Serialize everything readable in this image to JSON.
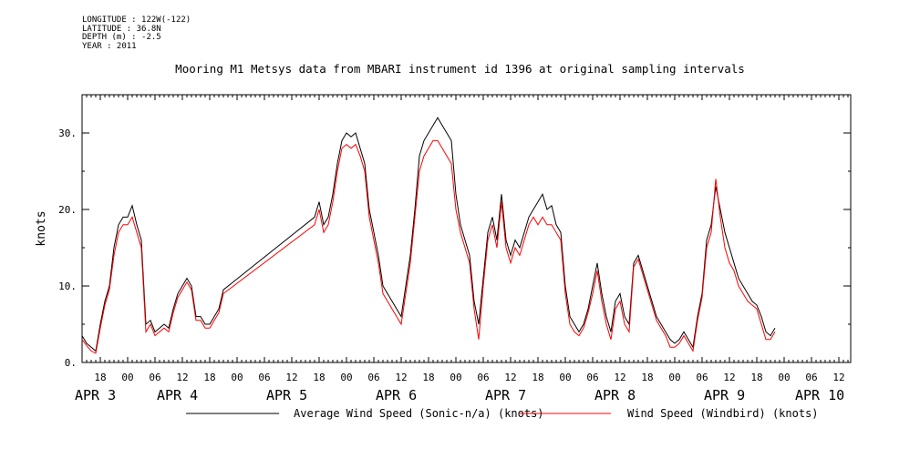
{
  "header": {
    "longitude": "LONGITUDE : 122W(-122)",
    "latitude": "LATITUDE : 36.8N",
    "depth": "DEPTH (m) : -2.5",
    "year": "YEAR : 2011"
  },
  "chart_data": {
    "type": "line",
    "title": "Mooring M1 Metsys data from MBARI instrument id 1396 at original sampling intervals",
    "ylabel": "knots",
    "xlabel": "",
    "x_unit": "hours since APR 2 14:00 (2011)",
    "xlim": [
      0,
      170
    ],
    "ylim": [
      0,
      35
    ],
    "yticks": [
      0,
      10,
      20,
      30
    ],
    "ytick_labels": [
      "0.",
      "10.",
      "20.",
      "30."
    ],
    "x_hour_ticks": [
      {
        "x": 4,
        "label": "18"
      },
      {
        "x": 10,
        "label": "00"
      },
      {
        "x": 16,
        "label": "06"
      },
      {
        "x": 22,
        "label": "12"
      },
      {
        "x": 28,
        "label": "18"
      },
      {
        "x": 34,
        "label": "00"
      },
      {
        "x": 40,
        "label": "06"
      },
      {
        "x": 46,
        "label": "12"
      },
      {
        "x": 52,
        "label": "18"
      },
      {
        "x": 58,
        "label": "00"
      },
      {
        "x": 64,
        "label": "06"
      },
      {
        "x": 70,
        "label": "12"
      },
      {
        "x": 76,
        "label": "18"
      },
      {
        "x": 82,
        "label": "00"
      },
      {
        "x": 88,
        "label": "06"
      },
      {
        "x": 94,
        "label": "12"
      },
      {
        "x": 100,
        "label": "18"
      },
      {
        "x": 106,
        "label": "00"
      },
      {
        "x": 112,
        "label": "06"
      },
      {
        "x": 118,
        "label": "12"
      },
      {
        "x": 124,
        "label": "18"
      },
      {
        "x": 130,
        "label": "00"
      },
      {
        "x": 136,
        "label": "06"
      },
      {
        "x": 142,
        "label": "12"
      },
      {
        "x": 148,
        "label": "18"
      },
      {
        "x": 154,
        "label": "00"
      },
      {
        "x": 160,
        "label": "06"
      },
      {
        "x": 166,
        "label": "12"
      }
    ],
    "day_labels": [
      {
        "x": 0,
        "label": "APR  3"
      },
      {
        "x": 18,
        "label": "APR  4"
      },
      {
        "x": 42,
        "label": "APR  5"
      },
      {
        "x": 66,
        "label": "APR  6"
      },
      {
        "x": 90,
        "label": "APR  7"
      },
      {
        "x": 114,
        "label": "APR  8"
      },
      {
        "x": 138,
        "label": "APR  9"
      },
      {
        "x": 158,
        "label": "APR 10"
      }
    ],
    "series": [
      {
        "name": "Average Wind Speed (Sonic-n/a) (knots)",
        "color": "#000000",
        "points": [
          [
            0,
            3.5
          ],
          [
            1,
            2.5
          ],
          [
            2,
            2.0
          ],
          [
            3,
            1.5
          ],
          [
            4,
            5
          ],
          [
            5,
            8
          ],
          [
            6,
            10
          ],
          [
            7,
            15
          ],
          [
            8,
            18
          ],
          [
            9,
            19
          ],
          [
            10,
            19
          ],
          [
            11,
            20.5
          ],
          [
            12,
            18
          ],
          [
            13,
            16
          ],
          [
            14,
            5
          ],
          [
            15,
            5.5
          ],
          [
            16,
            4
          ],
          [
            17,
            4.5
          ],
          [
            18,
            5
          ],
          [
            19,
            4.5
          ],
          [
            20,
            7
          ],
          [
            21,
            9
          ],
          [
            22,
            10
          ],
          [
            23,
            11
          ],
          [
            24,
            10
          ],
          [
            25,
            6
          ],
          [
            26,
            6
          ],
          [
            27,
            5
          ],
          [
            28,
            5
          ],
          [
            29,
            6
          ],
          [
            30,
            7
          ],
          [
            31,
            9.5
          ],
          [
            51,
            19
          ],
          [
            52,
            21
          ],
          [
            53,
            18
          ],
          [
            54,
            19
          ],
          [
            55,
            22
          ],
          [
            56,
            26
          ],
          [
            57,
            29
          ],
          [
            58,
            30
          ],
          [
            59,
            29.5
          ],
          [
            60,
            30
          ],
          [
            61,
            28
          ],
          [
            62,
            26
          ],
          [
            63,
            20
          ],
          [
            64,
            17
          ],
          [
            65,
            14
          ],
          [
            66,
            10
          ],
          [
            67,
            9
          ],
          [
            68,
            8
          ],
          [
            69,
            7
          ],
          [
            70,
            6
          ],
          [
            71,
            10
          ],
          [
            72,
            14
          ],
          [
            73,
            20
          ],
          [
            74,
            27
          ],
          [
            75,
            29
          ],
          [
            76,
            30
          ],
          [
            77,
            31
          ],
          [
            78,
            32
          ],
          [
            79,
            31
          ],
          [
            80,
            30
          ],
          [
            81,
            29
          ],
          [
            82,
            22
          ],
          [
            83,
            18
          ],
          [
            84,
            16
          ],
          [
            85,
            14
          ],
          [
            86,
            8
          ],
          [
            87,
            5
          ],
          [
            88,
            11
          ],
          [
            89,
            17
          ],
          [
            90,
            19
          ],
          [
            91,
            16
          ],
          [
            92,
            22
          ],
          [
            93,
            16
          ],
          [
            94,
            14
          ],
          [
            95,
            16
          ],
          [
            96,
            15
          ],
          [
            97,
            17
          ],
          [
            98,
            19
          ],
          [
            99,
            20
          ],
          [
            100,
            21
          ],
          [
            101,
            22
          ],
          [
            102,
            20
          ],
          [
            103,
            20.5
          ],
          [
            104,
            18
          ],
          [
            105,
            17
          ],
          [
            106,
            10
          ],
          [
            107,
            6
          ],
          [
            108,
            5
          ],
          [
            109,
            4
          ],
          [
            110,
            5
          ],
          [
            111,
            7
          ],
          [
            112,
            10
          ],
          [
            113,
            13
          ],
          [
            114,
            9
          ],
          [
            115,
            6
          ],
          [
            116,
            4
          ],
          [
            117,
            8
          ],
          [
            118,
            9
          ],
          [
            119,
            6
          ],
          [
            120,
            5
          ],
          [
            121,
            13
          ],
          [
            122,
            14
          ],
          [
            123,
            12
          ],
          [
            124,
            10
          ],
          [
            125,
            8
          ],
          [
            126,
            6
          ],
          [
            127,
            5
          ],
          [
            128,
            4
          ],
          [
            129,
            3
          ],
          [
            130,
            2.5
          ],
          [
            131,
            3
          ],
          [
            132,
            4
          ],
          [
            133,
            3
          ],
          [
            134,
            2
          ],
          [
            135,
            6
          ],
          [
            136,
            9
          ],
          [
            137,
            16
          ],
          [
            138,
            18
          ],
          [
            139,
            23
          ],
          [
            140,
            20
          ],
          [
            141,
            17
          ],
          [
            142,
            15
          ],
          [
            143,
            13
          ],
          [
            144,
            11
          ],
          [
            145,
            10
          ],
          [
            146,
            9
          ],
          [
            147,
            8
          ],
          [
            148,
            7.5
          ],
          [
            149,
            6
          ],
          [
            150,
            4
          ],
          [
            151,
            3.5
          ],
          [
            152,
            4.5
          ]
        ]
      },
      {
        "name": "Wind Speed (Windbird) (knots)",
        "color": "#ff0000",
        "points": [
          [
            0,
            3
          ],
          [
            1,
            2.2
          ],
          [
            2,
            1.5
          ],
          [
            3,
            1.2
          ],
          [
            4,
            4.5
          ],
          [
            5,
            7.5
          ],
          [
            6,
            9.5
          ],
          [
            7,
            14
          ],
          [
            8,
            17
          ],
          [
            9,
            18
          ],
          [
            10,
            18
          ],
          [
            11,
            19
          ],
          [
            12,
            17
          ],
          [
            13,
            15
          ],
          [
            14,
            4
          ],
          [
            15,
            5
          ],
          [
            16,
            3.5
          ],
          [
            17,
            4
          ],
          [
            18,
            4.5
          ],
          [
            19,
            4
          ],
          [
            20,
            6.5
          ],
          [
            21,
            8.5
          ],
          [
            22,
            9.5
          ],
          [
            23,
            10.5
          ],
          [
            24,
            9.5
          ],
          [
            25,
            5.5
          ],
          [
            26,
            5.5
          ],
          [
            27,
            4.5
          ],
          [
            28,
            4.5
          ],
          [
            29,
            5.5
          ],
          [
            30,
            6.5
          ],
          [
            31,
            9
          ],
          [
            51,
            18
          ],
          [
            52,
            20
          ],
          [
            53,
            17
          ],
          [
            54,
            18
          ],
          [
            55,
            21
          ],
          [
            56,
            25
          ],
          [
            57,
            28
          ],
          [
            58,
            28.5
          ],
          [
            59,
            28
          ],
          [
            60,
            28.5
          ],
          [
            61,
            27
          ],
          [
            62,
            25
          ],
          [
            63,
            19
          ],
          [
            64,
            16
          ],
          [
            65,
            13
          ],
          [
            66,
            9
          ],
          [
            67,
            8
          ],
          [
            68,
            7
          ],
          [
            69,
            6
          ],
          [
            70,
            5
          ],
          [
            71,
            9
          ],
          [
            72,
            13
          ],
          [
            73,
            19
          ],
          [
            74,
            25
          ],
          [
            75,
            27
          ],
          [
            76,
            28
          ],
          [
            77,
            29
          ],
          [
            78,
            29
          ],
          [
            79,
            28
          ],
          [
            80,
            27
          ],
          [
            81,
            26
          ],
          [
            82,
            20
          ],
          [
            83,
            17
          ],
          [
            84,
            15
          ],
          [
            85,
            13
          ],
          [
            86,
            7
          ],
          [
            87,
            3
          ],
          [
            88,
            10
          ],
          [
            89,
            16
          ],
          [
            90,
            18
          ],
          [
            91,
            15
          ],
          [
            92,
            21
          ],
          [
            93,
            15
          ],
          [
            94,
            13
          ],
          [
            95,
            15
          ],
          [
            96,
            14
          ],
          [
            97,
            16
          ],
          [
            98,
            18
          ],
          [
            99,
            19
          ],
          [
            100,
            18
          ],
          [
            101,
            19
          ],
          [
            102,
            18
          ],
          [
            103,
            18
          ],
          [
            104,
            17
          ],
          [
            105,
            16
          ],
          [
            106,
            9
          ],
          [
            107,
            5
          ],
          [
            108,
            4
          ],
          [
            109,
            3.5
          ],
          [
            110,
            4.5
          ],
          [
            111,
            6.5
          ],
          [
            112,
            9
          ],
          [
            113,
            12
          ],
          [
            114,
            8
          ],
          [
            115,
            5
          ],
          [
            116,
            3
          ],
          [
            117,
            7
          ],
          [
            118,
            8
          ],
          [
            119,
            5
          ],
          [
            120,
            4
          ],
          [
            121,
            12.5
          ],
          [
            122,
            13.5
          ],
          [
            123,
            11.5
          ],
          [
            124,
            9.5
          ],
          [
            125,
            7.5
          ],
          [
            126,
            5.5
          ],
          [
            127,
            4.5
          ],
          [
            128,
            3.5
          ],
          [
            129,
            2
          ],
          [
            130,
            2
          ],
          [
            131,
            2.5
          ],
          [
            132,
            3.5
          ],
          [
            133,
            2.5
          ],
          [
            134,
            1.5
          ],
          [
            135,
            5.5
          ],
          [
            136,
            8.5
          ],
          [
            137,
            15
          ],
          [
            138,
            17
          ],
          [
            139,
            24
          ],
          [
            140,
            19
          ],
          [
            141,
            15
          ],
          [
            142,
            13
          ],
          [
            143,
            12
          ],
          [
            144,
            10
          ],
          [
            145,
            9
          ],
          [
            146,
            8
          ],
          [
            147,
            7.5
          ],
          [
            148,
            7
          ],
          [
            149,
            5
          ],
          [
            150,
            3
          ],
          [
            151,
            3
          ],
          [
            152,
            4
          ]
        ]
      }
    ]
  }
}
